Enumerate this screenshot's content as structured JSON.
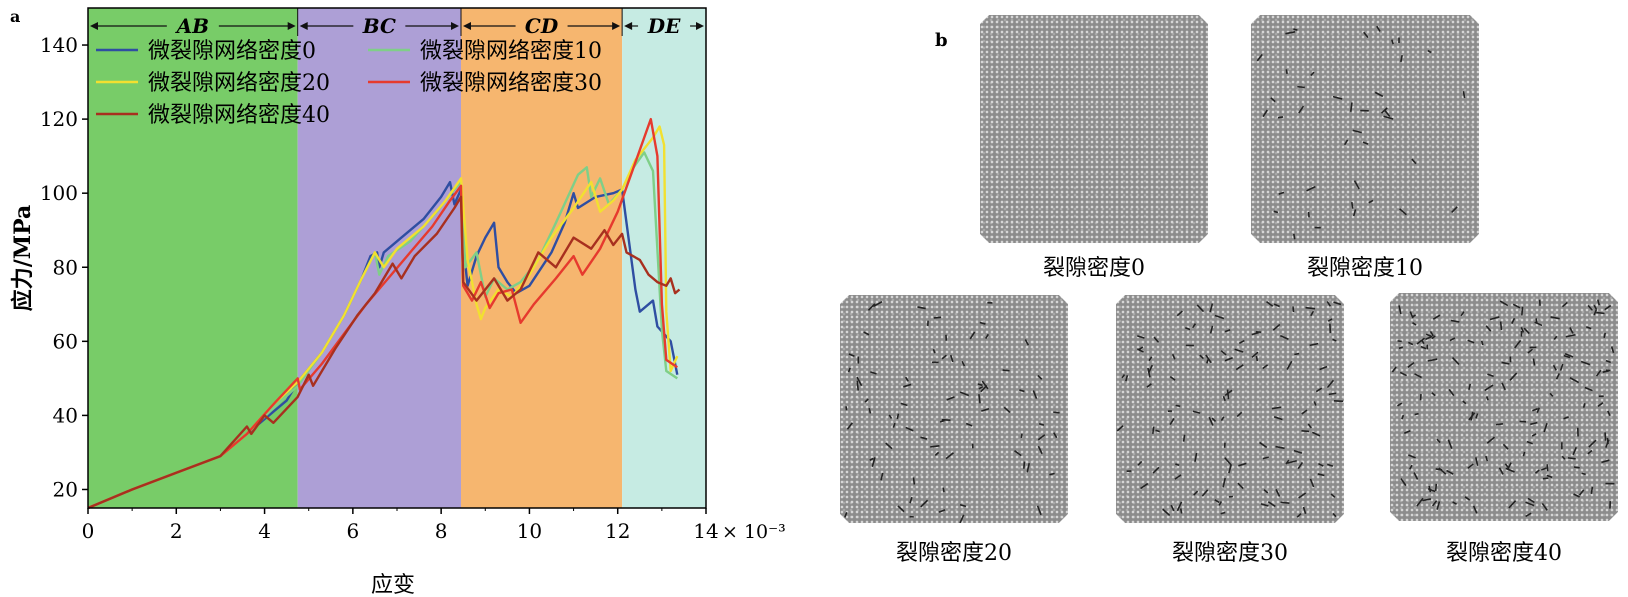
{
  "chart_data": {
    "type": "line",
    "panel_label": "a",
    "xlabel": "应变",
    "ylabel": "应力/MPa",
    "x_multiplier": "× 10⁻³",
    "xlim": [
      0,
      14
    ],
    "ylim": [
      15,
      150
    ],
    "xticks": [
      0,
      2,
      4,
      6,
      8,
      10,
      12,
      14
    ],
    "yticks": [
      20,
      40,
      60,
      80,
      100,
      120,
      140
    ],
    "grid": false,
    "legend_position": "top-left",
    "regions": [
      {
        "label": "AB",
        "x0": 0,
        "x1": 4.75,
        "color": "#78cc68"
      },
      {
        "label": "BC",
        "x0": 4.75,
        "x1": 8.45,
        "color": "#ad9fd6"
      },
      {
        "label": "CD",
        "x0": 8.45,
        "x1": 12.1,
        "color": "#f6b66f"
      },
      {
        "label": "DE",
        "x0": 12.1,
        "x1": 14,
        "color": "#c6ebe3"
      }
    ],
    "series": [
      {
        "name": "微裂隙网络密度0",
        "color": "#2f4ea2",
        "points": [
          [
            0,
            15
          ],
          [
            1,
            20
          ],
          [
            2,
            24.5
          ],
          [
            3,
            29
          ],
          [
            3.5,
            34
          ],
          [
            4,
            39
          ],
          [
            4.5,
            44
          ],
          [
            4.75,
            49
          ],
          [
            5.3,
            57
          ],
          [
            5.8,
            67
          ],
          [
            6.2,
            77
          ],
          [
            6.4,
            83
          ],
          [
            6.55,
            84
          ],
          [
            6.6,
            80
          ],
          [
            6.7,
            84
          ],
          [
            7.1,
            88
          ],
          [
            7.6,
            93
          ],
          [
            8.0,
            99
          ],
          [
            8.2,
            103
          ],
          [
            8.3,
            97
          ],
          [
            8.45,
            101
          ],
          [
            8.5,
            86
          ],
          [
            8.6,
            75
          ],
          [
            8.8,
            83
          ],
          [
            9.0,
            88
          ],
          [
            9.2,
            92
          ],
          [
            9.3,
            80
          ],
          [
            9.5,
            76
          ],
          [
            9.7,
            73
          ],
          [
            10.0,
            75
          ],
          [
            10.5,
            84
          ],
          [
            10.8,
            92
          ],
          [
            11.0,
            100
          ],
          [
            11.1,
            96
          ],
          [
            11.5,
            99
          ],
          [
            11.9,
            100
          ],
          [
            12.1,
            101
          ],
          [
            12.2,
            92
          ],
          [
            12.4,
            74
          ],
          [
            12.5,
            68
          ],
          [
            12.8,
            71
          ],
          [
            12.9,
            64
          ],
          [
            13.2,
            60
          ],
          [
            13.35,
            51
          ]
        ]
      },
      {
        "name": "微裂隙网络密度10",
        "color": "#7fcf88",
        "points": [
          [
            0,
            15
          ],
          [
            1,
            20
          ],
          [
            2,
            24.5
          ],
          [
            3,
            29
          ],
          [
            3.6,
            35
          ],
          [
            4.2,
            42
          ],
          [
            4.75,
            48
          ],
          [
            5.3,
            57
          ],
          [
            5.8,
            67
          ],
          [
            6.2,
            77
          ],
          [
            6.5,
            84
          ],
          [
            6.6,
            78
          ],
          [
            6.8,
            83
          ],
          [
            7.3,
            87
          ],
          [
            7.9,
            95
          ],
          [
            8.3,
            101
          ],
          [
            8.45,
            103
          ],
          [
            8.55,
            80
          ],
          [
            8.8,
            84
          ],
          [
            9.0,
            72
          ],
          [
            9.2,
            77
          ],
          [
            9.5,
            74
          ],
          [
            9.8,
            76
          ],
          [
            10.2,
            82
          ],
          [
            10.6,
            92
          ],
          [
            11.1,
            105
          ],
          [
            11.3,
            107
          ],
          [
            11.4,
            99
          ],
          [
            11.6,
            104
          ],
          [
            11.8,
            97
          ],
          [
            12.1,
            101
          ],
          [
            12.3,
            106
          ],
          [
            12.6,
            111
          ],
          [
            12.8,
            106
          ],
          [
            13.0,
            63
          ],
          [
            13.1,
            52
          ],
          [
            13.35,
            50
          ]
        ]
      },
      {
        "name": "微裂隙网络密度20",
        "color": "#f2e030",
        "points": [
          [
            0,
            15
          ],
          [
            1,
            20
          ],
          [
            2,
            24.5
          ],
          [
            3,
            29
          ],
          [
            3.6,
            35
          ],
          [
            4.2,
            43
          ],
          [
            4.75,
            49
          ],
          [
            5.3,
            57
          ],
          [
            5.8,
            67
          ],
          [
            6.2,
            77
          ],
          [
            6.5,
            84
          ],
          [
            6.7,
            80
          ],
          [
            7.0,
            85
          ],
          [
            7.6,
            91
          ],
          [
            8.1,
            98
          ],
          [
            8.45,
            104
          ],
          [
            8.6,
            82
          ],
          [
            8.8,
            70
          ],
          [
            8.9,
            66
          ],
          [
            9.0,
            69
          ],
          [
            9.3,
            74
          ],
          [
            9.6,
            72
          ],
          [
            10.0,
            78
          ],
          [
            10.5,
            88
          ],
          [
            11.0,
            96
          ],
          [
            11.4,
            103
          ],
          [
            11.6,
            95
          ],
          [
            11.9,
            98
          ],
          [
            12.1,
            101
          ],
          [
            12.4,
            109
          ],
          [
            12.8,
            115
          ],
          [
            12.95,
            118
          ],
          [
            13.05,
            113
          ],
          [
            13.1,
            68
          ],
          [
            13.2,
            52
          ],
          [
            13.35,
            56
          ]
        ]
      },
      {
        "name": "微裂隙网络密度30",
        "color": "#e63a2e",
        "points": [
          [
            0,
            15
          ],
          [
            1,
            20
          ],
          [
            2,
            24.5
          ],
          [
            3,
            29
          ],
          [
            3.6,
            35
          ],
          [
            4.2,
            43
          ],
          [
            4.75,
            50
          ],
          [
            4.8,
            47
          ],
          [
            5.3,
            54
          ],
          [
            5.8,
            62
          ],
          [
            6.3,
            70
          ],
          [
            6.8,
            77
          ],
          [
            7.3,
            84
          ],
          [
            7.8,
            91
          ],
          [
            8.2,
            98
          ],
          [
            8.45,
            102
          ],
          [
            8.5,
            75
          ],
          [
            8.7,
            71
          ],
          [
            8.9,
            76
          ],
          [
            9.1,
            69
          ],
          [
            9.3,
            73
          ],
          [
            9.6,
            74
          ],
          [
            9.8,
            65
          ],
          [
            10.1,
            70
          ],
          [
            10.6,
            77
          ],
          [
            11.0,
            83
          ],
          [
            11.2,
            78
          ],
          [
            11.6,
            85
          ],
          [
            12.0,
            95
          ],
          [
            12.3,
            105
          ],
          [
            12.6,
            115
          ],
          [
            12.75,
            120
          ],
          [
            12.9,
            110
          ],
          [
            13.0,
            70
          ],
          [
            13.1,
            55
          ],
          [
            13.35,
            53
          ]
        ]
      },
      {
        "name": "微裂隙网络密度40",
        "color": "#a8301f",
        "points": [
          [
            0,
            15
          ],
          [
            1,
            20
          ],
          [
            2,
            24.5
          ],
          [
            3,
            29
          ],
          [
            3.6,
            37
          ],
          [
            3.7,
            35
          ],
          [
            4.0,
            40
          ],
          [
            4.2,
            38
          ],
          [
            4.75,
            45
          ],
          [
            5.0,
            51
          ],
          [
            5.1,
            48
          ],
          [
            5.6,
            58
          ],
          [
            6.1,
            67
          ],
          [
            6.5,
            73
          ],
          [
            6.9,
            81
          ],
          [
            7.1,
            77
          ],
          [
            7.4,
            83
          ],
          [
            7.9,
            89
          ],
          [
            8.3,
            96
          ],
          [
            8.45,
            99
          ],
          [
            8.5,
            76
          ],
          [
            8.8,
            71
          ],
          [
            9.2,
            77
          ],
          [
            9.5,
            71
          ],
          [
            9.8,
            74
          ],
          [
            10.2,
            84
          ],
          [
            10.6,
            80
          ],
          [
            11.0,
            88
          ],
          [
            11.4,
            85
          ],
          [
            11.7,
            90
          ],
          [
            11.9,
            86
          ],
          [
            12.1,
            89
          ],
          [
            12.2,
            84
          ],
          [
            12.5,
            82
          ],
          [
            12.7,
            78
          ],
          [
            12.9,
            76
          ],
          [
            13.1,
            75
          ],
          [
            13.2,
            77
          ],
          [
            13.3,
            73
          ],
          [
            13.4,
            74
          ]
        ]
      }
    ]
  },
  "panel_b": {
    "panel_label": "b",
    "samples": [
      {
        "label": "裂隙密度0",
        "cracks": 0
      },
      {
        "label": "裂隙密度10",
        "cracks": 10
      },
      {
        "label": "裂隙密度20",
        "cracks": 20
      },
      {
        "label": "裂隙密度30",
        "cracks": 30
      },
      {
        "label": "裂隙密度40",
        "cracks": 40
      }
    ]
  }
}
